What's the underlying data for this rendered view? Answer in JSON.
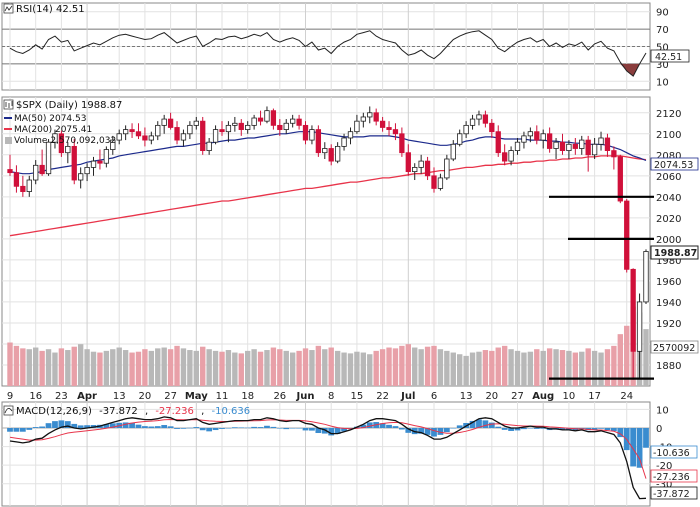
{
  "colors": {
    "up": "#ffffff",
    "up_border": "#222222",
    "down": "#d0103a",
    "ma50": "#1c2a8c",
    "ma200": "#e8344a",
    "rsi_line": "#222222",
    "rsi_oversold_fill": "#8a3d3d",
    "macd_line": "#111111",
    "signal_line": "#e8344a",
    "histogram": "#3a8ccf",
    "volume_up": "#b8b8b8",
    "volume_down": "#e8a0a8",
    "grid": "#e2e2e2",
    "reference_line": "#000000"
  },
  "rsi_panel": {
    "legend": "RSI(14) 42.51",
    "value_tag": "42.51",
    "ticks": [
      "90",
      "70",
      "50",
      "30",
      "10"
    ]
  },
  "price_panel": {
    "title": "$SPX (Daily) 1988.87",
    "legend_ma50": "MA(50) 2074.53",
    "legend_ma200": "MA(200) 2075.41",
    "legend_volume": "Volume 2,570,092,032",
    "ticks": [
      "2120",
      "2100",
      "2080",
      "2060",
      "2040",
      "2020",
      "2000",
      "1980",
      "1960",
      "1940",
      "1920",
      "1900",
      "1880"
    ],
    "last_price_tag": "1988.87",
    "ma_tag": "2074.53",
    "volume_tag": "2570092"
  },
  "macd_panel": {
    "legend_prefix": "MACD(12,26,9)",
    "legend_macd": "-37.872",
    "legend_signal": "-27.236",
    "legend_hist": "-10.636",
    "ticks": [
      "10",
      "0",
      "-10",
      "-20",
      "-30"
    ],
    "tag_hist": "-10.636",
    "tag_signal": "-27.236",
    "tag_macd": "-37.872"
  },
  "x_axis": {
    "labels": [
      {
        "text": "9",
        "major": false
      },
      {
        "text": "16",
        "major": false
      },
      {
        "text": "23",
        "major": false
      },
      {
        "text": "Apr",
        "major": true
      },
      {
        "text": "13",
        "major": false
      },
      {
        "text": "20",
        "major": false
      },
      {
        "text": "27",
        "major": false
      },
      {
        "text": "May",
        "major": true
      },
      {
        "text": "11",
        "major": false
      },
      {
        "text": "18",
        "major": false
      },
      {
        "text": "26",
        "major": false
      },
      {
        "text": "Jun",
        "major": true
      },
      {
        "text": "8",
        "major": false
      },
      {
        "text": "15",
        "major": false
      },
      {
        "text": "22",
        "major": false
      },
      {
        "text": "Jul",
        "major": true
      },
      {
        "text": "6",
        "major": false
      },
      {
        "text": "13",
        "major": false
      },
      {
        "text": "20",
        "major": false
      },
      {
        "text": "27",
        "major": false
      },
      {
        "text": "Aug",
        "major": true
      },
      {
        "text": "10",
        "major": false
      },
      {
        "text": "17",
        "major": false
      },
      {
        "text": "24",
        "major": false
      }
    ]
  },
  "chart_data": {
    "type": "candlestick",
    "title": "$SPX (Daily) 1988.87",
    "ylim": [
      1860,
      2135
    ],
    "reference_levels": [
      2040,
      2000,
      1867
    ],
    "candles": [
      {
        "o": 2066,
        "h": 2080,
        "l": 2060,
        "c": 2063
      },
      {
        "o": 2063,
        "h": 2070,
        "l": 2044,
        "c": 2050
      },
      {
        "o": 2050,
        "h": 2060,
        "l": 2040,
        "c": 2045
      },
      {
        "o": 2045,
        "h": 2060,
        "l": 2040,
        "c": 2056
      },
      {
        "o": 2056,
        "h": 2075,
        "l": 2052,
        "c": 2070
      },
      {
        "o": 2070,
        "h": 2085,
        "l": 2060,
        "c": 2062
      },
      {
        "o": 2062,
        "h": 2095,
        "l": 2060,
        "c": 2092
      },
      {
        "o": 2092,
        "h": 2104,
        "l": 2086,
        "c": 2100
      },
      {
        "o": 2100,
        "h": 2103,
        "l": 2078,
        "c": 2082
      },
      {
        "o": 2082,
        "h": 2092,
        "l": 2072,
        "c": 2088
      },
      {
        "o": 2088,
        "h": 2095,
        "l": 2052,
        "c": 2056
      },
      {
        "o": 2056,
        "h": 2068,
        "l": 2048,
        "c": 2062
      },
      {
        "o": 2062,
        "h": 2072,
        "l": 2055,
        "c": 2068
      },
      {
        "o": 2068,
        "h": 2078,
        "l": 2060,
        "c": 2074
      },
      {
        "o": 2074,
        "h": 2085,
        "l": 2066,
        "c": 2072
      },
      {
        "o": 2072,
        "h": 2088,
        "l": 2068,
        "c": 2085
      },
      {
        "o": 2085,
        "h": 2098,
        "l": 2080,
        "c": 2094
      },
      {
        "o": 2094,
        "h": 2104,
        "l": 2090,
        "c": 2100
      },
      {
        "o": 2100,
        "h": 2108,
        "l": 2094,
        "c": 2104
      },
      {
        "o": 2104,
        "h": 2110,
        "l": 2096,
        "c": 2102
      },
      {
        "o": 2102,
        "h": 2110,
        "l": 2095,
        "c": 2098
      },
      {
        "o": 2098,
        "h": 2106,
        "l": 2088,
        "c": 2094
      },
      {
        "o": 2094,
        "h": 2102,
        "l": 2090,
        "c": 2098
      },
      {
        "o": 2098,
        "h": 2112,
        "l": 2094,
        "c": 2108
      },
      {
        "o": 2108,
        "h": 2118,
        "l": 2100,
        "c": 2114
      },
      {
        "o": 2114,
        "h": 2120,
        "l": 2104,
        "c": 2106
      },
      {
        "o": 2106,
        "h": 2112,
        "l": 2090,
        "c": 2094
      },
      {
        "o": 2094,
        "h": 2104,
        "l": 2088,
        "c": 2100
      },
      {
        "o": 2100,
        "h": 2112,
        "l": 2095,
        "c": 2108
      },
      {
        "o": 2108,
        "h": 2116,
        "l": 2104,
        "c": 2112
      },
      {
        "o": 2112,
        "h": 2116,
        "l": 2080,
        "c": 2084
      },
      {
        "o": 2084,
        "h": 2096,
        "l": 2080,
        "c": 2092
      },
      {
        "o": 2092,
        "h": 2108,
        "l": 2090,
        "c": 2104
      },
      {
        "o": 2104,
        "h": 2112,
        "l": 2098,
        "c": 2102
      },
      {
        "o": 2102,
        "h": 2112,
        "l": 2092,
        "c": 2108
      },
      {
        "o": 2108,
        "h": 2116,
        "l": 2102,
        "c": 2110
      },
      {
        "o": 2110,
        "h": 2114,
        "l": 2098,
        "c": 2104
      },
      {
        "o": 2104,
        "h": 2112,
        "l": 2100,
        "c": 2108
      },
      {
        "o": 2108,
        "h": 2118,
        "l": 2104,
        "c": 2115
      },
      {
        "o": 2115,
        "h": 2122,
        "l": 2108,
        "c": 2112
      },
      {
        "o": 2112,
        "h": 2126,
        "l": 2110,
        "c": 2122
      },
      {
        "o": 2122,
        "h": 2124,
        "l": 2104,
        "c": 2108
      },
      {
        "o": 2108,
        "h": 2114,
        "l": 2098,
        "c": 2104
      },
      {
        "o": 2104,
        "h": 2114,
        "l": 2100,
        "c": 2110
      },
      {
        "o": 2110,
        "h": 2118,
        "l": 2106,
        "c": 2114
      },
      {
        "o": 2114,
        "h": 2118,
        "l": 2104,
        "c": 2108
      },
      {
        "o": 2108,
        "h": 2112,
        "l": 2090,
        "c": 2094
      },
      {
        "o": 2094,
        "h": 2108,
        "l": 2090,
        "c": 2104
      },
      {
        "o": 2104,
        "h": 2108,
        "l": 2078,
        "c": 2082
      },
      {
        "o": 2082,
        "h": 2092,
        "l": 2076,
        "c": 2086
      },
      {
        "o": 2086,
        "h": 2090,
        "l": 2070,
        "c": 2074
      },
      {
        "o": 2074,
        "h": 2092,
        "l": 2072,
        "c": 2088
      },
      {
        "o": 2088,
        "h": 2100,
        "l": 2084,
        "c": 2096
      },
      {
        "o": 2096,
        "h": 2106,
        "l": 2090,
        "c": 2102
      },
      {
        "o": 2102,
        "h": 2118,
        "l": 2100,
        "c": 2112
      },
      {
        "o": 2112,
        "h": 2120,
        "l": 2106,
        "c": 2116
      },
      {
        "o": 2116,
        "h": 2126,
        "l": 2110,
        "c": 2120
      },
      {
        "o": 2120,
        "h": 2124,
        "l": 2108,
        "c": 2112
      },
      {
        "o": 2112,
        "h": 2116,
        "l": 2102,
        "c": 2106
      },
      {
        "o": 2106,
        "h": 2112,
        "l": 2098,
        "c": 2104
      },
      {
        "o": 2104,
        "h": 2110,
        "l": 2094,
        "c": 2100
      },
      {
        "o": 2100,
        "h": 2106,
        "l": 2078,
        "c": 2082
      },
      {
        "o": 2082,
        "h": 2090,
        "l": 2060,
        "c": 2064
      },
      {
        "o": 2064,
        "h": 2072,
        "l": 2056,
        "c": 2068
      },
      {
        "o": 2068,
        "h": 2080,
        "l": 2062,
        "c": 2074
      },
      {
        "o": 2074,
        "h": 2078,
        "l": 2056,
        "c": 2060
      },
      {
        "o": 2060,
        "h": 2068,
        "l": 2044,
        "c": 2048
      },
      {
        "o": 2048,
        "h": 2062,
        "l": 2046,
        "c": 2058
      },
      {
        "o": 2058,
        "h": 2080,
        "l": 2056,
        "c": 2076
      },
      {
        "o": 2076,
        "h": 2094,
        "l": 2074,
        "c": 2090
      },
      {
        "o": 2090,
        "h": 2104,
        "l": 2088,
        "c": 2100
      },
      {
        "o": 2100,
        "h": 2112,
        "l": 2096,
        "c": 2108
      },
      {
        "o": 2108,
        "h": 2118,
        "l": 2104,
        "c": 2114
      },
      {
        "o": 2114,
        "h": 2122,
        "l": 2108,
        "c": 2118
      },
      {
        "o": 2118,
        "h": 2122,
        "l": 2106,
        "c": 2110
      },
      {
        "o": 2110,
        "h": 2114,
        "l": 2096,
        "c": 2102
      },
      {
        "o": 2102,
        "h": 2108,
        "l": 2078,
        "c": 2082
      },
      {
        "o": 2082,
        "h": 2090,
        "l": 2070,
        "c": 2074
      },
      {
        "o": 2074,
        "h": 2088,
        "l": 2070,
        "c": 2084
      },
      {
        "o": 2084,
        "h": 2096,
        "l": 2080,
        "c": 2092
      },
      {
        "o": 2092,
        "h": 2102,
        "l": 2086,
        "c": 2098
      },
      {
        "o": 2098,
        "h": 2106,
        "l": 2092,
        "c": 2102
      },
      {
        "o": 2102,
        "h": 2108,
        "l": 2090,
        "c": 2094
      },
      {
        "o": 2094,
        "h": 2104,
        "l": 2086,
        "c": 2100
      },
      {
        "o": 2100,
        "h": 2106,
        "l": 2082,
        "c": 2086
      },
      {
        "o": 2086,
        "h": 2096,
        "l": 2076,
        "c": 2092
      },
      {
        "o": 2092,
        "h": 2100,
        "l": 2080,
        "c": 2084
      },
      {
        "o": 2084,
        "h": 2094,
        "l": 2076,
        "c": 2090
      },
      {
        "o": 2090,
        "h": 2096,
        "l": 2080,
        "c": 2086
      },
      {
        "o": 2086,
        "h": 2098,
        "l": 2080,
        "c": 2094
      },
      {
        "o": 2094,
        "h": 2098,
        "l": 2064,
        "c": 2080
      },
      {
        "o": 2080,
        "h": 2096,
        "l": 2076,
        "c": 2090
      },
      {
        "o": 2090,
        "h": 2102,
        "l": 2084,
        "c": 2096
      },
      {
        "o": 2096,
        "h": 2100,
        "l": 2078,
        "c": 2084
      },
      {
        "o": 2084,
        "h": 2088,
        "l": 2066,
        "c": 2078
      },
      {
        "o": 2078,
        "h": 2080,
        "l": 2034,
        "c": 2036
      },
      {
        "o": 2036,
        "h": 2038,
        "l": 1968,
        "c": 1971
      },
      {
        "o": 1971,
        "h": 1972,
        "l": 1866,
        "c": 1893
      },
      {
        "o": 1893,
        "h": 1948,
        "l": 1867,
        "c": 1940
      },
      {
        "o": 1940,
        "h": 1990,
        "l": 1938,
        "c": 1988
      }
    ],
    "ma50": [
      2064,
      2063,
      2062,
      2062,
      2063,
      2064,
      2066,
      2067,
      2068,
      2069,
      2070,
      2071,
      2073,
      2074,
      2075,
      2076,
      2077,
      2079,
      2080,
      2081,
      2082,
      2083,
      2084,
      2085,
      2086,
      2087,
      2088,
      2088,
      2089,
      2090,
      2091,
      2091,
      2092,
      2093,
      2094,
      2094,
      2095,
      2096,
      2096,
      2097,
      2098,
      2099,
      2100,
      2100,
      2101,
      2102,
      2102,
      2102,
      2101,
      2100,
      2099,
      2098,
      2097,
      2097,
      2097,
      2097,
      2098,
      2098,
      2098,
      2098,
      2097,
      2096,
      2094,
      2093,
      2092,
      2091,
      2090,
      2089,
      2089,
      2090,
      2091,
      2093,
      2094,
      2096,
      2097,
      2097,
      2096,
      2095,
      2095,
      2095,
      2095,
      2094,
      2094,
      2094,
      2093,
      2093,
      2092,
      2092,
      2091,
      2091,
      2090,
      2090,
      2090,
      2089,
      2087,
      2085,
      2082,
      2079,
      2077,
      2074.53
    ],
    "ma200": [
      2003,
      2004,
      2005,
      2006,
      2007,
      2008,
      2009,
      2010,
      2011,
      2012,
      2013,
      2014,
      2015,
      2016,
      2017,
      2018,
      2019,
      2020,
      2021,
      2022,
      2023,
      2024,
      2025,
      2026,
      2027,
      2028,
      2029,
      2030,
      2031,
      2032,
      2033,
      2034,
      2035,
      2036,
      2036,
      2037,
      2038,
      2039,
      2040,
      2041,
      2042,
      2043,
      2044,
      2045,
      2046,
      2047,
      2048,
      2048,
      2049,
      2050,
      2051,
      2052,
      2053,
      2054,
      2054,
      2055,
      2056,
      2057,
      2058,
      2058,
      2059,
      2060,
      2061,
      2062,
      2062,
      2063,
      2064,
      2065,
      2065,
      2066,
      2067,
      2068,
      2068,
      2069,
      2070,
      2070,
      2071,
      2071,
      2072,
      2072,
      2073,
      2073,
      2074,
      2074,
      2075,
      2075,
      2076,
      2076,
      2077,
      2077,
      2078,
      2078,
      2079,
      2079,
      2079,
      2079,
      2078,
      2077,
      2076,
      2075.41
    ],
    "volume_pct_of_panel": [
      52,
      48,
      45,
      44,
      46,
      42,
      44,
      40,
      45,
      43,
      47,
      50,
      44,
      41,
      40,
      42,
      44,
      46,
      43,
      40,
      41,
      44,
      42,
      45,
      46,
      44,
      48,
      45,
      43,
      42,
      47,
      44,
      42,
      41,
      43,
      40,
      39,
      42,
      44,
      41,
      43,
      46,
      44,
      42,
      40,
      42,
      45,
      43,
      48,
      44,
      46,
      42,
      40,
      39,
      41,
      40,
      38,
      42,
      44,
      46,
      45,
      48,
      50,
      46,
      44,
      47,
      48,
      44,
      42,
      40,
      38,
      36,
      40,
      41,
      43,
      42,
      46,
      48,
      44,
      42,
      40,
      41,
      44,
      42,
      45,
      44,
      43,
      42,
      40,
      41,
      45,
      42,
      40,
      44,
      48,
      62,
      72,
      95,
      88,
      68
    ],
    "rsi": [
      48,
      44,
      42,
      46,
      52,
      47,
      58,
      62,
      55,
      57,
      45,
      48,
      51,
      54,
      52,
      56,
      60,
      63,
      64,
      62,
      60,
      58,
      59,
      63,
      66,
      60,
      54,
      57,
      60,
      62,
      50,
      54,
      59,
      58,
      61,
      62,
      59,
      61,
      64,
      62,
      66,
      58,
      55,
      58,
      60,
      57,
      50,
      55,
      46,
      48,
      42,
      50,
      55,
      58,
      64,
      66,
      68,
      62,
      58,
      56,
      54,
      46,
      40,
      42,
      46,
      40,
      36,
      42,
      50,
      58,
      62,
      65,
      67,
      68,
      63,
      58,
      48,
      44,
      50,
      55,
      58,
      60,
      55,
      58,
      50,
      54,
      49,
      53,
      51,
      55,
      46,
      53,
      56,
      48,
      45,
      32,
      22,
      16,
      30,
      42.51
    ],
    "macd": [
      -7,
      -7.5,
      -8,
      -7.5,
      -6,
      -5.5,
      -3,
      -1,
      0.5,
      1,
      0,
      -0.5,
      0,
      0.5,
      1,
      2,
      3,
      4,
      5,
      5.5,
      5,
      4.5,
      4.5,
      5,
      6,
      5.5,
      4,
      4,
      4.5,
      5,
      3,
      2,
      2.5,
      3,
      3.5,
      4,
      4,
      4,
      4.5,
      4.5,
      5.5,
      5,
      4,
      3.5,
      4,
      4,
      2.5,
      2,
      0,
      -1,
      -3,
      -3,
      -2,
      -1,
      0.5,
      2,
      4,
      5,
      5,
      4.5,
      4,
      2,
      -0.5,
      -2,
      -2.5,
      -4,
      -6,
      -6,
      -5,
      -3,
      -1,
      1,
      3,
      5,
      5.5,
      5,
      3,
      1,
      0,
      0,
      0.5,
      1,
      0.5,
      0.5,
      -0.5,
      -0.5,
      -1,
      -1,
      -1.5,
      -1,
      -2,
      -2,
      -1.5,
      -2.5,
      -3.5,
      -8,
      -18,
      -32,
      -38,
      -37.872
    ],
    "signal": [
      -5,
      -5.5,
      -6,
      -6.5,
      -6.5,
      -6.3,
      -5.6,
      -4.7,
      -3.6,
      -2.7,
      -2.2,
      -1.9,
      -1.5,
      -1.1,
      -0.7,
      -0.1,
      0.5,
      1.2,
      2,
      2.7,
      3.2,
      3.5,
      3.7,
      4,
      4.4,
      4.6,
      4.5,
      4.4,
      4.4,
      4.5,
      4.2,
      3.8,
      3.6,
      3.5,
      3.5,
      3.6,
      3.7,
      3.8,
      3.9,
      4,
      4.3,
      4.4,
      4.3,
      4.1,
      4.1,
      4.1,
      3.8,
      3.4,
      2.7,
      2,
      1,
      0.2,
      -0.2,
      -0.4,
      -0.2,
      0.2,
      1,
      1.8,
      2.4,
      2.8,
      3,
      2.8,
      2.1,
      1.3,
      0.6,
      -0.3,
      -1.4,
      -2.3,
      -2.8,
      -2.8,
      -2.4,
      -1.7,
      -0.8,
      0.4,
      1.4,
      2.1,
      2.3,
      2,
      1.6,
      1.3,
      1.1,
      1.1,
      1,
      0.9,
      0.6,
      0.4,
      0.1,
      -0.1,
      -0.4,
      -0.5,
      -0.8,
      -1,
      -1.1,
      -1.4,
      -1.8,
      -3.1,
      -6.1,
      -11.3,
      -16.6,
      -27.236
    ]
  }
}
